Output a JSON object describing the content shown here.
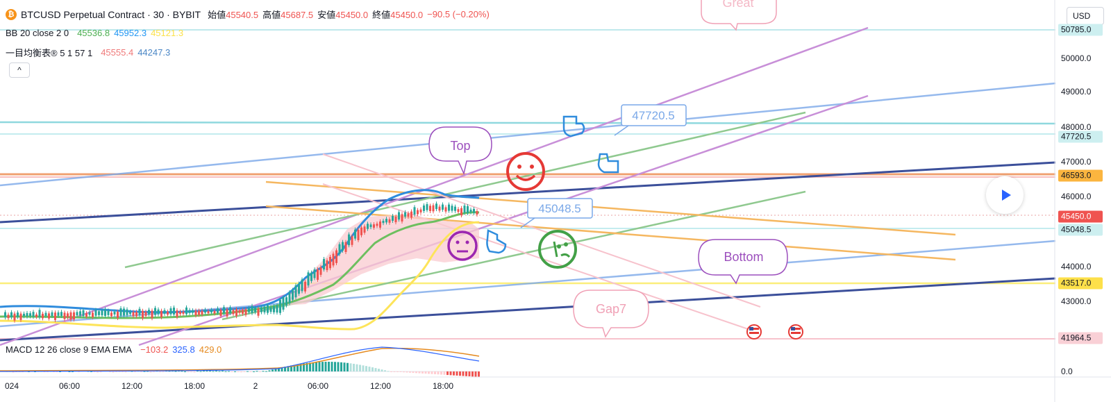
{
  "header": {
    "coin_symbol": "₿",
    "title": "BTCUSD Perpetual Contract · 30 · BYBIT",
    "ohlc": [
      {
        "label": "始値",
        "value": "45540.5"
      },
      {
        "label": "高値",
        "value": "45687.5"
      },
      {
        "label": "安値",
        "value": "45450.0"
      },
      {
        "label": "終値",
        "value": "45450.0"
      }
    ],
    "change": "−90.5 (−0.20%)"
  },
  "indicators": {
    "bb": {
      "label": "BB 20 close 2 0",
      "values": [
        "45536.8",
        "45952.3",
        "45121.3"
      ],
      "colors": [
        "#4caf50",
        "#2196f3",
        "#fbe14a"
      ]
    },
    "ichimoku": {
      "label": "一目均衡表® 5 1 57 1",
      "values": [
        "45555.4",
        "44247.3"
      ],
      "colors": [
        "#ef7a7a",
        "#4a86c5"
      ]
    },
    "macd": {
      "label": "MACD 12 26 close 9 EMA EMA",
      "values": [
        "−103.2",
        "325.8",
        "429.0"
      ],
      "colors": [
        "#ef5350",
        "#2962ff",
        "#e58a1f"
      ]
    }
  },
  "controls": {
    "collapse_icon": "^",
    "currency": "USD"
  },
  "price_scale": {
    "labels": [
      "50000.0",
      "49000.0",
      "48000.0",
      "47000.0",
      "46000.0",
      "44000.0",
      "43000.0",
      "0.0"
    ],
    "tags": [
      {
        "value": "50785.0",
        "bg": "#cdeff0",
        "fg": "#131722"
      },
      {
        "value": "47720.5",
        "bg": "#cdeff0",
        "fg": "#131722"
      },
      {
        "value": "46593.0",
        "bg": "#fbb53f",
        "fg": "#131722"
      },
      {
        "value": "45450.0",
        "bg": "#ef5350",
        "fg": "#ffffff"
      },
      {
        "value": "45048.5",
        "bg": "#cdeff0",
        "fg": "#131722"
      },
      {
        "value": "43517.0",
        "bg": "#fde04a",
        "fg": "#131722"
      },
      {
        "value": "41964.5",
        "bg": "#f9d0d6",
        "fg": "#131722"
      }
    ]
  },
  "time_axis": [
    "024",
    "06:00",
    "12:00",
    "18:00",
    "2",
    "06:00",
    "12:00",
    "18:00"
  ],
  "annotations": {
    "great": "Great",
    "top": "Top",
    "bottom": "Bottom",
    "gap": "Gap7",
    "price_label_1": "47720.5",
    "price_label_2": "45048.5"
  }
}
